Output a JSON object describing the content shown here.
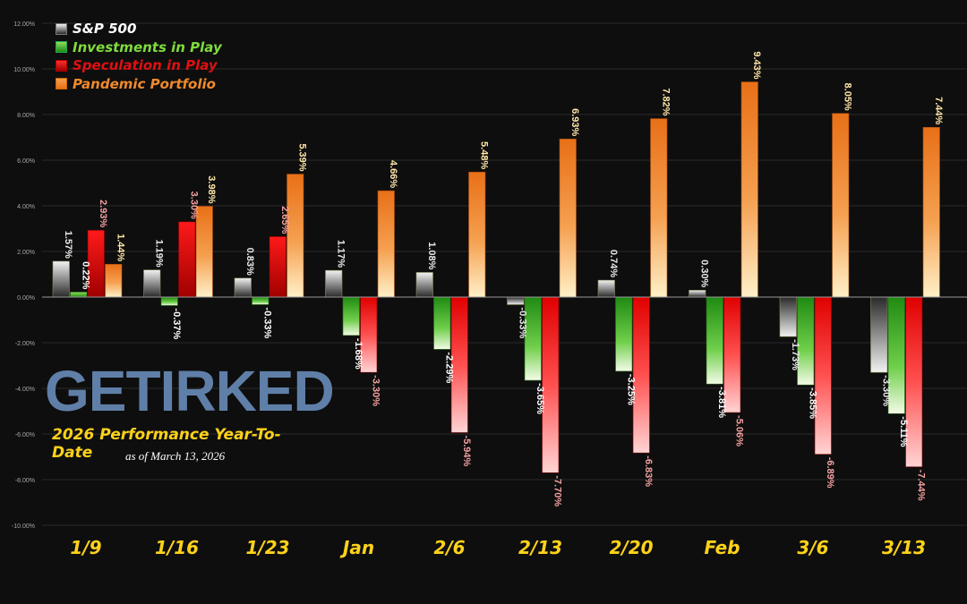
{
  "chart_data": {
    "type": "bar",
    "categories": [
      "1/9",
      "1/16",
      "1/23",
      "Jan",
      "2/6",
      "2/13",
      "2/20",
      "Feb",
      "3/6",
      "3/13"
    ],
    "series": [
      {
        "name": "S&P 500",
        "values": [
          1.57,
          1.19,
          0.83,
          1.17,
          1.08,
          -0.33,
          0.74,
          0.3,
          -1.73,
          -3.3
        ],
        "labels": [
          "1.57%",
          "1.19%",
          "0.83%",
          "1.17%",
          "1.08%",
          "-0.33%",
          "0.74%",
          "0.30%",
          "-1.73%",
          "-3.30%"
        ],
        "color": "#c9c9c9",
        "label_color": "#eaeaea"
      },
      {
        "name": "Investments in Play",
        "values": [
          0.22,
          -0.37,
          -0.33,
          -1.68,
          -2.29,
          -3.65,
          -3.25,
          -3.81,
          -3.85,
          -5.11
        ],
        "labels": [
          "0.22%",
          "-0.37%",
          "-0.33%",
          "-1.68%",
          "-2.29%",
          "-3.65%",
          "-3.25%",
          "-3.81%",
          "-3.85%",
          "-5.11%"
        ],
        "color": "#3fb41e",
        "label_color": "#ffffff"
      },
      {
        "name": "Speculation in Play",
        "values": [
          2.93,
          3.3,
          2.65,
          -3.3,
          -5.94,
          -7.7,
          -6.83,
          -5.06,
          -6.89,
          -7.44
        ],
        "labels": [
          "2.93%",
          "3.30%",
          "2.65%",
          "-3.30%",
          "-5.94%",
          "-7.70%",
          "-6.83%",
          "-5.06%",
          "-6.89%",
          "-7.44%"
        ],
        "color": "#e00000",
        "label_color": "#f4a0a0"
      },
      {
        "name": "Pandemic Portfolio",
        "values": [
          1.44,
          3.98,
          5.39,
          4.66,
          5.48,
          6.93,
          7.82,
          9.43,
          8.05,
          7.44
        ],
        "labels": [
          "1.44%",
          "3.98%",
          "5.39%",
          "4.66%",
          "5.48%",
          "6.93%",
          "7.82%",
          "9.43%",
          "8.05%",
          "7.44%"
        ],
        "color": "#ee7a22",
        "label_color": "#ffe7a8"
      }
    ],
    "ylim": [
      -10,
      12
    ],
    "yticks": [
      12,
      10,
      8,
      6,
      4,
      2,
      0,
      -2,
      -4,
      -6,
      -8,
      -10
    ],
    "ytick_labels": [
      "12.00%",
      "10.00%",
      "8.00%",
      "6.00%",
      "4.00%",
      "2.00%",
      "0.00%",
      "-2.00%",
      "-4.00%",
      "-6.00%",
      "-8.00%",
      "-10.00%"
    ],
    "grid": true,
    "legend_position": "top-left",
    "category_label_color": "#ffd21a"
  },
  "legend": [
    {
      "label": "S&P 500",
      "color": "#ffffff"
    },
    {
      "label": "Investments in Play",
      "color": "#7fdc3c"
    },
    {
      "label": "Speculation in Play",
      "color": "#e01010"
    },
    {
      "label": "Pandemic Portfolio",
      "color": "#f08a2c"
    }
  ],
  "branding": {
    "logo": "GETIRKED",
    "title": "2026 Performance Year-To-Date",
    "as_of": "as of March 13, 2026"
  }
}
